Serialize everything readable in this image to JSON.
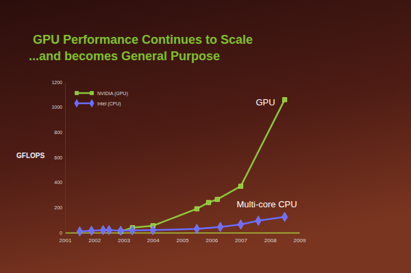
{
  "chart_data": {
    "type": "line",
    "title": "GPU Performance Continues to Scale",
    "subtitle": "...and becomes General Purpose",
    "y_label": "GFLOPS",
    "xlim": [
      2001,
      2009
    ],
    "xticks": [
      2001,
      2002,
      2003,
      2004,
      2005,
      2006,
      2007,
      2008,
      2009
    ],
    "ylim": [
      0,
      1200
    ],
    "yticks": [
      0,
      200,
      400,
      600,
      800,
      1000,
      1200
    ],
    "grid": false,
    "legend": "top-left",
    "series": [
      {
        "name": "NVIDIA (GPU)",
        "color": "#8dc63f",
        "marker": "square",
        "x": [
          2002.9,
          2003.3,
          2004.0,
          2005.5,
          2005.9,
          2006.2,
          2007.0,
          2008.5
        ],
        "values": [
          10,
          40,
          55,
          190,
          240,
          265,
          370,
          1060
        ]
      },
      {
        "name": "Intel (CPU)",
        "color": "#6b6dff",
        "marker": "diamond",
        "x": [
          2001.5,
          2001.9,
          2002.3,
          2002.5,
          2002.9,
          2003.3,
          2004.0,
          2005.5,
          2006.3,
          2007.0,
          2007.6,
          2008.5
        ],
        "values": [
          10,
          15,
          20,
          20,
          15,
          18,
          20,
          30,
          45,
          65,
          95,
          125
        ]
      }
    ],
    "annotations": [
      "GPU",
      "Multi-core CPU"
    ]
  }
}
